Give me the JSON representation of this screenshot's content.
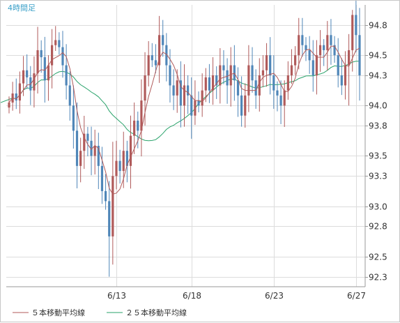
{
  "chart_data": {
    "type": "candlestick",
    "title": "4時間足",
    "xlabel": "",
    "ylabel": "",
    "ylim": [
      92.2,
      95.0
    ],
    "yticks": [
      "94.8",
      "94.5",
      "94.3",
      "94.0",
      "93.8",
      "93.5",
      "93.3",
      "93.0",
      "92.8",
      "92.5",
      "92.3"
    ],
    "ytick_values": [
      94.8,
      94.5,
      94.3,
      94.0,
      93.8,
      93.5,
      93.3,
      93.0,
      92.8,
      92.5,
      92.3
    ],
    "xticks": [
      {
        "label": "6/13",
        "index": 30
      },
      {
        "label": "6/18",
        "index": 51
      },
      {
        "label": "6/23",
        "index": 74
      },
      {
        "label": "6/27",
        "index": 97
      }
    ],
    "grid": true,
    "legend": [
      {
        "name": "５本移動平均線",
        "color": "#b05a5a"
      },
      {
        "name": "２５本移動平均線",
        "color": "#2aa36b"
      }
    ],
    "colors": {
      "up": "#b05a5a",
      "down": "#4f86b8",
      "ma5": "#b05a5a",
      "ma25": "#2aa36b",
      "title": "#3aa0c8"
    },
    "close": [
      94.03,
      94.12,
      94.05,
      94.22,
      94.35,
      94.28,
      94.15,
      94.32,
      94.55,
      94.48,
      94.25,
      94.4,
      94.6,
      94.65,
      94.58,
      94.4,
      94.2,
      94.0,
      93.75,
      93.4,
      93.55,
      93.72,
      93.65,
      93.5,
      93.6,
      93.4,
      93.15,
      93.05,
      92.7,
      93.3,
      93.45,
      93.35,
      93.55,
      93.4,
      93.7,
      93.85,
      93.75,
      94.05,
      94.3,
      94.5,
      94.45,
      94.4,
      94.7,
      94.6,
      94.4,
      94.2,
      94.1,
      94.25,
      94.0,
      94.2,
      94.1,
      93.9,
      94.05,
      94.0,
      94.15,
      94.28,
      94.15,
      94.3,
      94.2,
      94.4,
      94.35,
      94.2,
      94.4,
      94.25,
      94.1,
      93.9,
      94.1,
      94.4,
      94.25,
      94.1,
      94.3,
      94.35,
      94.5,
      94.3,
      94.15,
      94.1,
      94.0,
      94.15,
      94.3,
      94.4,
      94.5,
      94.7,
      94.6,
      94.55,
      94.45,
      94.3,
      94.5,
      94.6,
      94.55,
      94.7,
      94.6,
      94.5,
      94.3,
      94.2,
      94.4,
      94.55,
      94.9,
      94.7,
      94.3
    ]
  }
}
